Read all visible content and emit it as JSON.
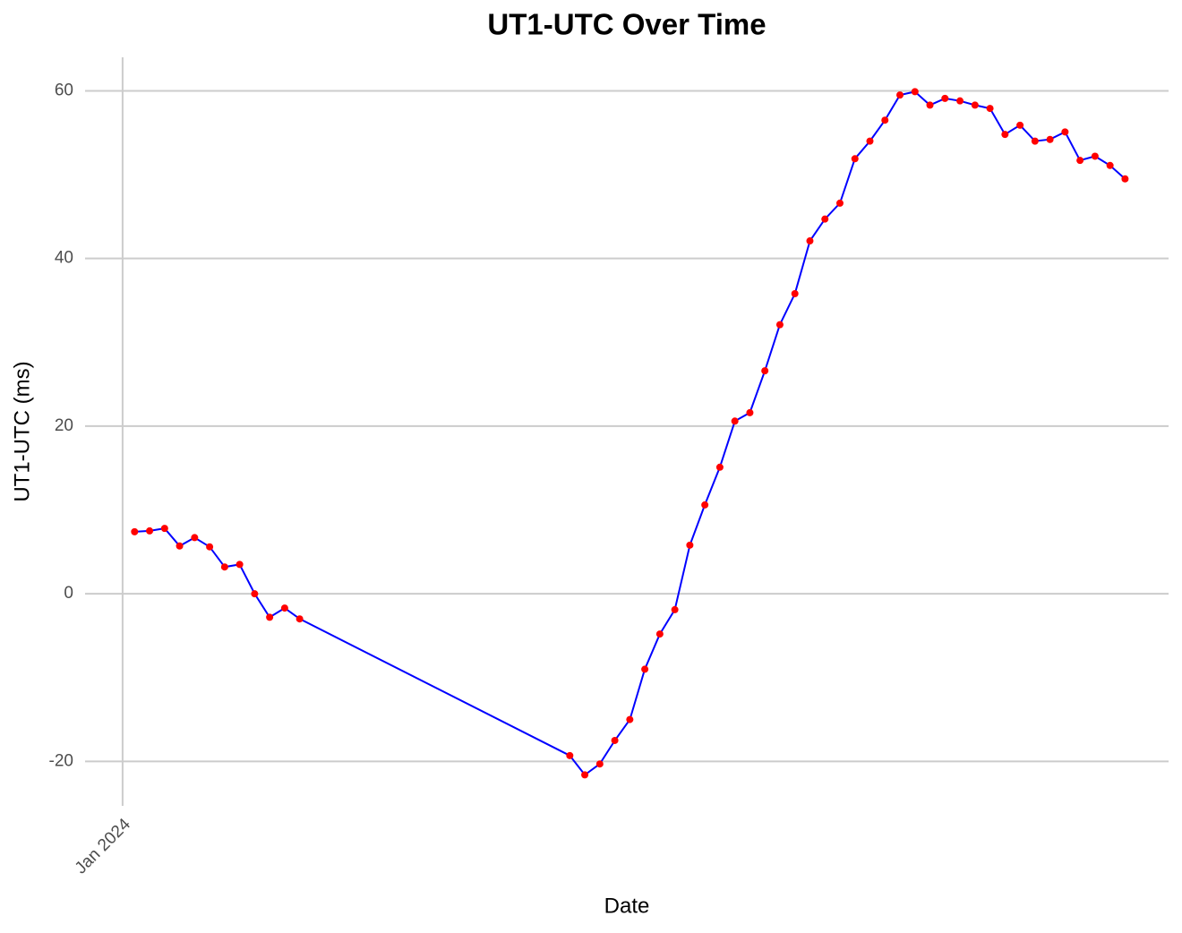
{
  "chart_data": {
    "type": "line",
    "title": "UT1-UTC Over Time",
    "x_label": "Date",
    "y_label": "UT1-UTC (ms)",
    "x": [
      1,
      2,
      3,
      4,
      5,
      6,
      7,
      8,
      9,
      10,
      11,
      12,
      30,
      31,
      32,
      33,
      34,
      35,
      36,
      37,
      38,
      39,
      40,
      41,
      42,
      43,
      44,
      45,
      46,
      47,
      48,
      49,
      50,
      51,
      52,
      53,
      54,
      55,
      56,
      57,
      58,
      59,
      60,
      61,
      62,
      63,
      64,
      65,
      66,
      67
    ],
    "values": [
      7.4,
      7.5,
      7.8,
      5.7,
      6.7,
      5.6,
      3.2,
      3.5,
      0.0,
      -2.8,
      -1.7,
      -3.0,
      -19.3,
      -21.6,
      -20.3,
      -17.5,
      -15.0,
      -9.0,
      -4.8,
      -1.9,
      5.8,
      10.6,
      15.1,
      20.6,
      21.6,
      26.6,
      32.1,
      35.8,
      42.1,
      44.7,
      46.6,
      51.9,
      54.0,
      56.5,
      59.5,
      59.9,
      58.3,
      59.1,
      58.8,
      58.3,
      57.9,
      54.8,
      55.9,
      54.0,
      54.2,
      55.1,
      51.7,
      52.2,
      51.1,
      49.5
    ],
    "color": "#0000ff",
    "marker_color": "#ff0000",
    "xlim": [
      -2.3,
      69.9
    ],
    "xticks": [
      {
        "value": 0.2,
        "label": "Jan 2024"
      }
    ],
    "ylim": [
      -25.3,
      64
    ],
    "yticks": [
      -20,
      0,
      20,
      40,
      60
    ],
    "grid": true
  }
}
